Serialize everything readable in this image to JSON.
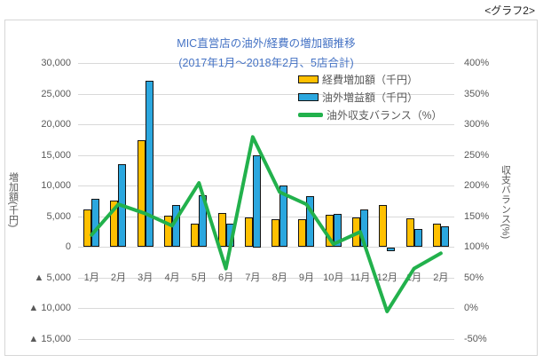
{
  "page": {
    "corner_label": "<グラフ2>"
  },
  "chart": {
    "title": "MIC直営店の油外/経費の増加額推移",
    "subtitle": "(2017年1月～2018年2月、5店合計)",
    "left_axis_title": "増加額(千円)",
    "right_axis_title": "収支バランス(%)"
  },
  "chart_data": {
    "type": "bar",
    "subtype": "combo dual-axis: grouped bars (left axis) + line (right axis)",
    "title": "MIC直営店の油外/経費の増加額推移",
    "subtitle": "(2017年1月～2018年2月、5店合計)",
    "categories": [
      "1月",
      "2月",
      "3月",
      "4月",
      "5月",
      "6月",
      "7月",
      "8月",
      "9月",
      "10月",
      "11月",
      "12月",
      "1月",
      "2月"
    ],
    "series": [
      {
        "name": "経費増加額（千円）",
        "type": "bar",
        "axis": "left",
        "color": "#FFC000",
        "values": [
          6200,
          7600,
          17400,
          5200,
          3900,
          5600,
          4800,
          4600,
          4600,
          5300,
          4900,
          6900,
          4700,
          3800
        ]
      },
      {
        "name": "油外増益額（千円）",
        "type": "bar",
        "axis": "left",
        "color": "#2BA7DF",
        "values": [
          7900,
          13500,
          27200,
          6900,
          8500,
          3800,
          15000,
          10100,
          8400,
          5500,
          6200,
          -600,
          3000,
          3400
        ]
      },
      {
        "name": "油外収支バランス（%）",
        "type": "line",
        "axis": "right",
        "color": "#22B14C",
        "values": [
          120,
          170,
          155,
          135,
          205,
          65,
          280,
          190,
          170,
          105,
          125,
          -5,
          65,
          90
        ]
      }
    ],
    "left_axis": {
      "label": "増加額(千円)",
      "max": 30000,
      "min": -15000,
      "step": 5000,
      "tick_labels": [
        "30,000",
        "25,000",
        "20,000",
        "15,000",
        "10,000",
        "5,000",
        "0",
        "▲ 5,000",
        "▲ 10,000",
        "▲ 15,000"
      ]
    },
    "right_axis": {
      "label": "収支バランス(%)",
      "max": 400,
      "min": -50,
      "step": 50,
      "tick_labels": [
        "400%",
        "350%",
        "300%",
        "250%",
        "200%",
        "150%",
        "100%",
        "50%",
        "0%",
        "-50%"
      ]
    },
    "grid": true,
    "legend_position": "inside upper-right",
    "colors": {
      "grid": "#D9D9D9",
      "bar_border": "#141414",
      "tick_text": "#595959",
      "title_text": "#4472C4",
      "frame_border": "#D6D6D6"
    }
  }
}
